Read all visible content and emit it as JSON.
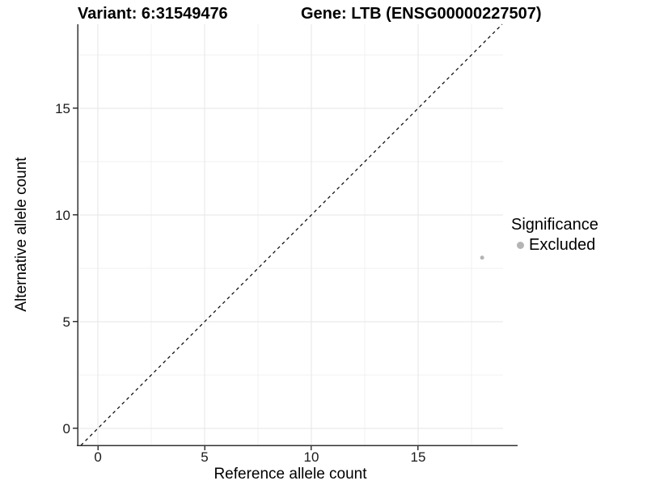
{
  "header": {
    "variant_title": "Variant: 6:31549476",
    "gene_title": "Gene: LTB (ENSG00000227507)"
  },
  "chart_data": {
    "type": "scatter",
    "title_left": "Variant: 6:31549476",
    "title_right": "Gene: LTB (ENSG00000227507)",
    "xlabel": "Reference allele count",
    "ylabel": "Alternative allele count",
    "xlim": [
      -0.95,
      18.98
    ],
    "ylim": [
      -0.8,
      18.94
    ],
    "x_ticks": [
      0,
      5,
      10,
      15
    ],
    "y_ticks": [
      0,
      5,
      10,
      15
    ],
    "x_minor_ticks": [
      2.5,
      7.5,
      12.5,
      17.5
    ],
    "y_minor_ticks": [
      2.5,
      7.5,
      12.5,
      17.5
    ],
    "grid": "major+minor",
    "legend_position": "right",
    "series": [
      {
        "name": "Excluded",
        "color": "#b4b4b4",
        "points": [
          {
            "x": 18,
            "y": 8
          }
        ]
      }
    ],
    "reference_line": {
      "type": "identity y=x",
      "style": "dashed",
      "color": "#000000"
    }
  },
  "legend": {
    "title": "Significance",
    "items": [
      {
        "label": "Excluded",
        "color": "#b4b4b4",
        "marker": "circle-icon"
      }
    ]
  },
  "colors": {
    "background": "#ffffff",
    "grid_major": "#e6e6e6",
    "grid_minor": "#f1f1f1",
    "axis_line": "#333333",
    "tick_text": "#1a1a1a",
    "point": "#b4b4b4"
  }
}
